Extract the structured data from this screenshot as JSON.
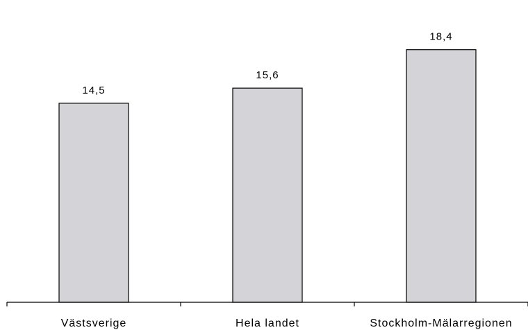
{
  "chart_data": {
    "type": "bar",
    "categories": [
      "Västsverige",
      "Hela landet",
      "Stockholm-Mälarregionen"
    ],
    "values": [
      14.5,
      15.6,
      18.4
    ],
    "value_labels": [
      "14,5",
      "15,6",
      "18,4"
    ],
    "title": "",
    "xlabel": "",
    "ylabel": "",
    "ylim": [
      0,
      20
    ],
    "grid": false,
    "legend": "none",
    "colors": {
      "bar_fill": "#d3d3d8",
      "bar_stroke": "#000000",
      "axis": "#000000"
    }
  }
}
